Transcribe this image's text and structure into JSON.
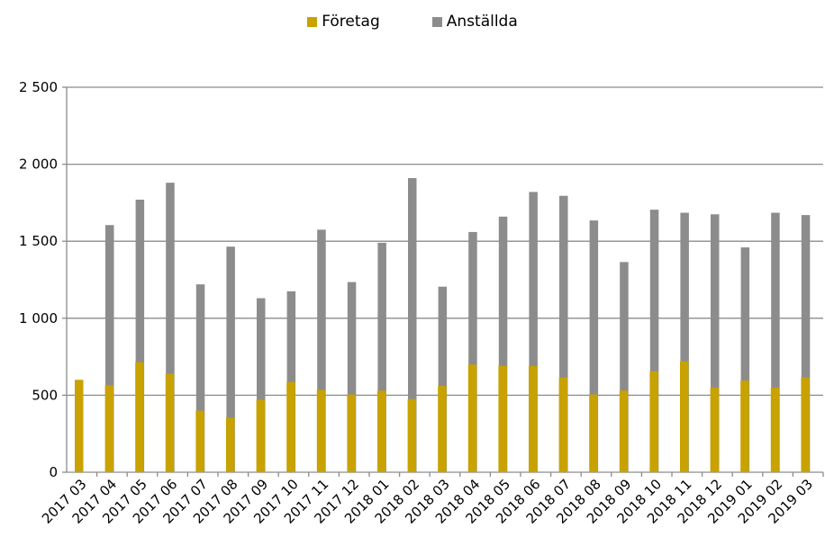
{
  "chart_data": {
    "type": "bar",
    "categories": [
      "2017 03",
      "2017 04",
      "2017 05",
      "2017 06",
      "2017 07",
      "2017 08",
      "2017 09",
      "2017 10",
      "2017 11",
      "2017 12",
      "2018 01",
      "2018 02",
      "2018 03",
      "2018 04",
      "2018 05",
      "2018 06",
      "2018 07",
      "2018 08",
      "2018 09",
      "2018 10",
      "2018 11",
      "2018 12",
      "2019 01",
      "2019 02",
      "2019 03"
    ],
    "series": [
      {
        "name": "Företag",
        "color": "#c8a200",
        "values": [
          600,
          565,
          715,
          640,
          400,
          355,
          470,
          585,
          535,
          505,
          530,
          475,
          560,
          700,
          690,
          690,
          615,
          505,
          530,
          655,
          720,
          550,
          595,
          550,
          615
        ]
      },
      {
        "name": "Anställda",
        "color": "#8c8c8c",
        "values": [
          1605,
          1770,
          1880,
          1220,
          1465,
          1130,
          1175,
          1575,
          1235,
          1490,
          1910,
          1205,
          1560,
          1660,
          1820,
          1795,
          1635,
          1365,
          1705,
          1685,
          1675,
          1460,
          1685,
          1670,
          1750
        ]
      }
    ],
    "yticks": [
      "0",
      "500",
      "1 000",
      "1 500",
      "2 000",
      "2 500"
    ],
    "ylim": [
      0,
      2500
    ],
    "grid": true,
    "legend": "top-center",
    "title": "",
    "xlabel": "",
    "ylabel": ""
  }
}
